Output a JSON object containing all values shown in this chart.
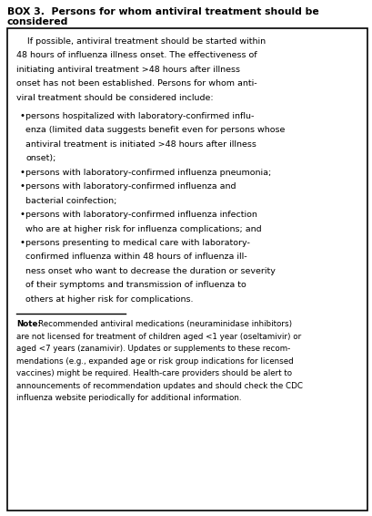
{
  "title_line1": "BOX 3.  Persons for whom antiviral treatment should be",
  "title_line2": "considered",
  "title_fontsize": 7.8,
  "body_fontsize": 6.8,
  "note_fontsize": 6.3,
  "bg_color": "#ffffff",
  "border_color": "#000000",
  "text_color": "#000000",
  "fig_width": 4.1,
  "fig_height": 5.66,
  "intro_lines": [
    "    If possible, antiviral treatment should be started within",
    "48 hours of influenza illness onset. The effectiveness of",
    "initiating antiviral treatment >48 hours after illness",
    "onset has not been established. Persons for whom anti-",
    "viral treatment should be considered include:"
  ],
  "bullet_items": [
    [
      "persons hospitalized with laboratory-confirmed influ-",
      "enza (limited data suggests benefit even for persons whose",
      "antiviral treatment is initiated >48 hours after illness",
      "onset);"
    ],
    [
      "persons with laboratory-confirmed influenza pneumonia;"
    ],
    [
      "persons with laboratory-confirmed influenza and",
      "bacterial coinfection;"
    ],
    [
      "persons with laboratory-confirmed influenza infection",
      "who are at higher risk for influenza complications; and"
    ],
    [
      "persons presenting to medical care with laboratory-",
      "confirmed influenza within 48 hours of influenza ill-",
      "ness onset who want to decrease the duration or severity",
      "of their symptoms and transmission of influenza to",
      "others at higher risk for complications."
    ]
  ],
  "note_lines": [
    [
      "Note:",
      "Recommended antiviral medications (neuraminidase inhibitors)"
    ],
    [
      null,
      "are not licensed for treatment of children aged <1 year (oseltamivir) or"
    ],
    [
      null,
      "aged <7 years (zanamivir). Updates or supplements to these recom-"
    ],
    [
      null,
      "mendations (e.g., expanded age or risk group indications for licensed"
    ],
    [
      null,
      "vaccines) might be required. Health-care providers should be alert to"
    ],
    [
      null,
      "announcements of recommendation updates and should check the CDC"
    ],
    [
      null,
      "influenza website periodically for additional information."
    ]
  ]
}
